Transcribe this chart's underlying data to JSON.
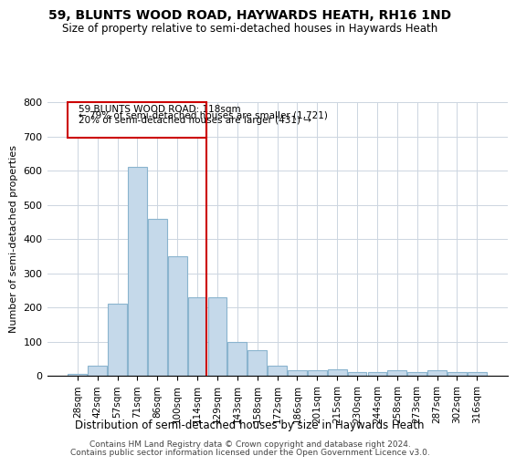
{
  "title": "59, BLUNTS WOOD ROAD, HAYWARDS HEATH, RH16 1ND",
  "subtitle": "Size of property relative to semi-detached houses in Haywards Heath",
  "xlabel": "Distribution of semi-detached houses by size in Haywards Heath",
  "ylabel": "Number of semi-detached properties",
  "categories": [
    "28sqm",
    "42sqm",
    "57sqm",
    "71sqm",
    "86sqm",
    "100sqm",
    "114sqm",
    "129sqm",
    "143sqm",
    "158sqm",
    "172sqm",
    "186sqm",
    "201sqm",
    "215sqm",
    "230sqm",
    "244sqm",
    "258sqm",
    "273sqm",
    "287sqm",
    "302sqm",
    "316sqm"
  ],
  "values": [
    5,
    30,
    210,
    610,
    460,
    350,
    230,
    230,
    100,
    75,
    30,
    15,
    15,
    20,
    10,
    10,
    15,
    10,
    15,
    10,
    10
  ],
  "bar_color": "#c5d9ea",
  "bar_edge_color": "#8ab4ce",
  "highlight_index": 6,
  "highlight_line_color": "#cc0000",
  "annotation_box_color": "#cc0000",
  "annotation_text": "59 BLUNTS WOOD ROAD: 118sqm",
  "annotation_line1": "← 79% of semi-detached houses are smaller (1,721)",
  "annotation_line2": "20% of semi-detached houses are larger (431) →",
  "ylim": [
    0,
    800
  ],
  "yticks": [
    0,
    100,
    200,
    300,
    400,
    500,
    600,
    700,
    800
  ],
  "footer1": "Contains HM Land Registry data © Crown copyright and database right 2024.",
  "footer2": "Contains public sector information licensed under the Open Government Licence v3.0.",
  "bg_color": "#ffffff",
  "grid_color": "#ccd5e0"
}
